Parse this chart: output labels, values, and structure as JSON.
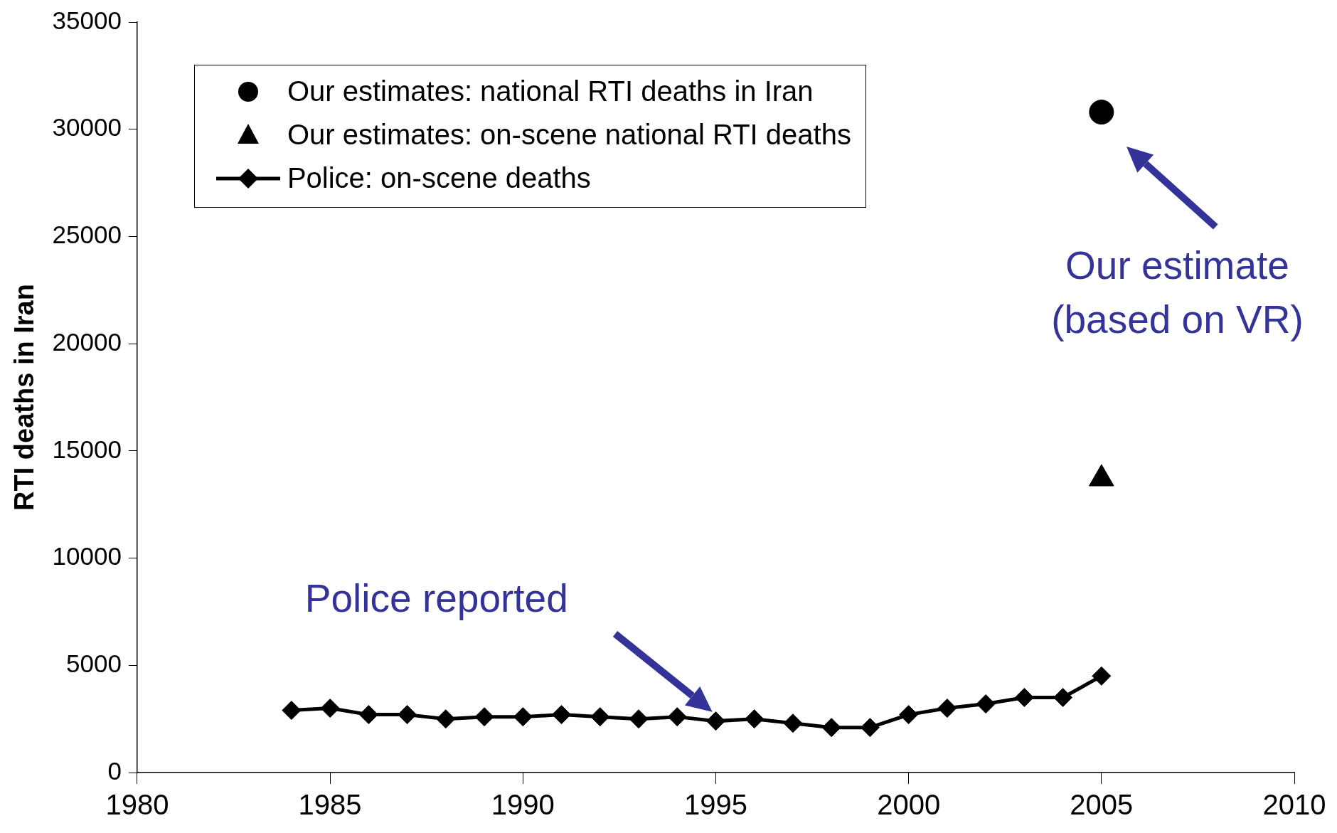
{
  "chart_data": {
    "type": "line",
    "ylabel": "RTI deaths in Iran",
    "xlim": [
      1980,
      2010
    ],
    "xticks": [
      1980,
      1985,
      1990,
      1995,
      2000,
      2005,
      2010
    ],
    "ylim": [
      0,
      35000
    ],
    "yticks": [
      0,
      5000,
      10000,
      15000,
      20000,
      25000,
      30000,
      35000
    ],
    "legend": "top left",
    "series": [
      {
        "name": "Our estimates: national RTI deaths in Iran",
        "type": "scatter",
        "marker": "circle",
        "color": "#000000",
        "x": [
          2005
        ],
        "values": [
          30800
        ]
      },
      {
        "name": "Our estimates: on-scene national RTI deaths",
        "type": "scatter",
        "marker": "triangle",
        "color": "#000000",
        "x": [
          2005
        ],
        "values": [
          13700
        ]
      },
      {
        "name": "Police: on-scene deaths",
        "type": "line",
        "marker": "diamond",
        "color": "#000000",
        "x": [
          1984,
          1985,
          1986,
          1987,
          1988,
          1989,
          1990,
          1991,
          1992,
          1993,
          1994,
          1995,
          1996,
          1997,
          1998,
          1999,
          2000,
          2001,
          2002,
          2003,
          2004,
          2005
        ],
        "values": [
          2900,
          3000,
          2700,
          2700,
          2500,
          2600,
          2600,
          2700,
          2600,
          2500,
          2600,
          2400,
          2500,
          2300,
          2100,
          2100,
          2700,
          3000,
          3200,
          3500,
          3500,
          4500
        ]
      }
    ],
    "annotations": [
      "Police reported",
      "Our estimate\n(based on VR)"
    ]
  }
}
